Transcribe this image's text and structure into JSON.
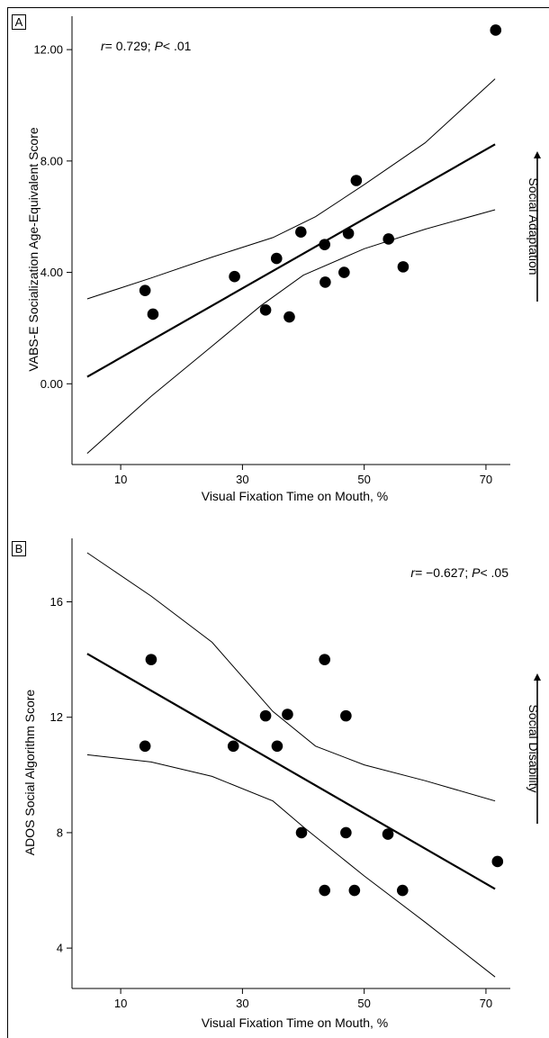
{
  "chart_data": [
    {
      "panel": "A",
      "type": "scatter",
      "annotation": {
        "r_label": "r",
        "r_value": "= 0.729",
        "p_label": "P",
        "p_value": "< .01",
        "sep": "; "
      },
      "xlabel": "Visual Fixation Time on Mouth, %",
      "ylabel": "VABS-E Socialization Age-Equivalent Score",
      "side_label": "Social Adaptation",
      "xlim": [
        2,
        74
      ],
      "ylim": [
        -2.9,
        13.2
      ],
      "xticks": [
        10,
        30,
        50,
        70
      ],
      "xtick_labels": [
        "10",
        "30",
        "50",
        "70"
      ],
      "yticks": [
        0,
        4,
        8,
        12
      ],
      "ytick_labels": [
        "0.00",
        "4.00",
        "8.00",
        "12.00"
      ],
      "points": [
        {
          "x": 14.0,
          "y": 3.35
        },
        {
          "x": 15.3,
          "y": 2.5
        },
        {
          "x": 28.7,
          "y": 3.85
        },
        {
          "x": 33.8,
          "y": 2.65
        },
        {
          "x": 35.6,
          "y": 4.5
        },
        {
          "x": 37.7,
          "y": 2.4
        },
        {
          "x": 39.6,
          "y": 5.45
        },
        {
          "x": 43.5,
          "y": 5.0
        },
        {
          "x": 43.6,
          "y": 3.65
        },
        {
          "x": 46.7,
          "y": 4.0
        },
        {
          "x": 47.4,
          "y": 5.4
        },
        {
          "x": 48.7,
          "y": 7.3
        },
        {
          "x": 54.0,
          "y": 5.2
        },
        {
          "x": 56.4,
          "y": 4.2
        },
        {
          "x": 71.6,
          "y": 12.7
        }
      ],
      "fit_line": [
        {
          "x": 4.5,
          "y": 0.25
        },
        {
          "x": 71.5,
          "y": 8.6
        }
      ],
      "ci_upper": [
        {
          "x": 4.5,
          "y": 3.05
        },
        {
          "x": 15,
          "y": 3.8
        },
        {
          "x": 25,
          "y": 4.55
        },
        {
          "x": 35,
          "y": 5.25
        },
        {
          "x": 42,
          "y": 6.0
        },
        {
          "x": 50,
          "y": 7.15
        },
        {
          "x": 60,
          "y": 8.65
        },
        {
          "x": 71.5,
          "y": 10.95
        }
      ],
      "ci_lower": [
        {
          "x": 4.5,
          "y": -2.5
        },
        {
          "x": 15,
          "y": -0.45
        },
        {
          "x": 25,
          "y": 1.35
        },
        {
          "x": 33,
          "y": 2.8
        },
        {
          "x": 40,
          "y": 3.9
        },
        {
          "x": 50,
          "y": 4.85
        },
        {
          "x": 60,
          "y": 5.55
        },
        {
          "x": 71.5,
          "y": 6.25
        }
      ]
    },
    {
      "panel": "B",
      "type": "scatter",
      "annotation": {
        "r_label": "r",
        "r_value": "= −0.627",
        "p_label": "P",
        "p_value": "< .05",
        "sep": "; "
      },
      "xlabel": "Visual Fixation Time on Mouth, %",
      "ylabel": "ADOS Social Algorithm Score",
      "side_label": "Social Disability",
      "xlim": [
        2,
        74
      ],
      "ylim": [
        2.6,
        18.2
      ],
      "xticks": [
        10,
        30,
        50,
        70
      ],
      "xtick_labels": [
        "10",
        "30",
        "50",
        "70"
      ],
      "yticks": [
        4,
        8,
        12,
        16
      ],
      "ytick_labels": [
        "4",
        "8",
        "12",
        "16"
      ],
      "points": [
        {
          "x": 14.0,
          "y": 11.0
        },
        {
          "x": 15.0,
          "y": 14.0
        },
        {
          "x": 28.5,
          "y": 11.0
        },
        {
          "x": 33.8,
          "y": 12.05
        },
        {
          "x": 35.7,
          "y": 11.0
        },
        {
          "x": 37.4,
          "y": 12.1
        },
        {
          "x": 39.7,
          "y": 8.0
        },
        {
          "x": 43.5,
          "y": 14.0
        },
        {
          "x": 43.5,
          "y": 6.0
        },
        {
          "x": 47.0,
          "y": 12.05
        },
        {
          "x": 47.0,
          "y": 8.0
        },
        {
          "x": 48.4,
          "y": 6.0
        },
        {
          "x": 53.9,
          "y": 7.95
        },
        {
          "x": 56.3,
          "y": 6.0
        },
        {
          "x": 71.9,
          "y": 7.0
        }
      ],
      "fit_line": [
        {
          "x": 4.5,
          "y": 14.2
        },
        {
          "x": 71.5,
          "y": 6.05
        }
      ],
      "ci_upper": [
        {
          "x": 4.5,
          "y": 17.7
        },
        {
          "x": 15,
          "y": 16.2
        },
        {
          "x": 25,
          "y": 14.6
        },
        {
          "x": 35,
          "y": 12.2
        },
        {
          "x": 42,
          "y": 11.0
        },
        {
          "x": 50,
          "y": 10.35
        },
        {
          "x": 60,
          "y": 9.8
        },
        {
          "x": 71.5,
          "y": 9.1
        }
      ],
      "ci_lower": [
        {
          "x": 4.5,
          "y": 10.7
        },
        {
          "x": 15,
          "y": 10.45
        },
        {
          "x": 25,
          "y": 9.95
        },
        {
          "x": 35,
          "y": 9.1
        },
        {
          "x": 40,
          "y": 8.2
        },
        {
          "x": 50,
          "y": 6.5
        },
        {
          "x": 60,
          "y": 4.9
        },
        {
          "x": 71.5,
          "y": 3.0
        }
      ]
    }
  ]
}
